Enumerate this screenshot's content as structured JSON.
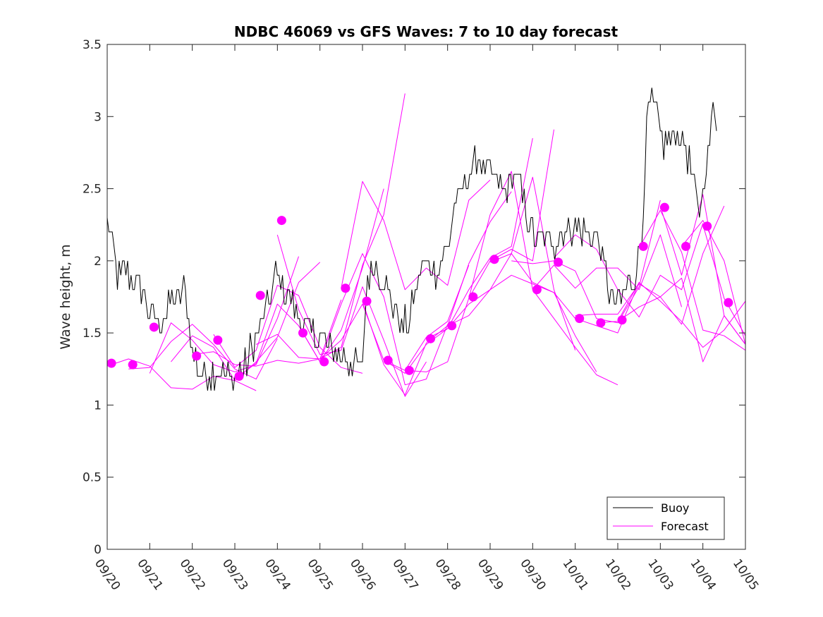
{
  "chart_data": {
    "type": "line",
    "title": "NDBC 46069 vs GFS Waves: 7 to 10 day forecast",
    "xlabel": "",
    "ylabel": "Wave height, m",
    "xlim": [
      0,
      15
    ],
    "ylim": [
      0,
      3.5
    ],
    "yticks": [
      0,
      0.5,
      1,
      1.5,
      2,
      2.5,
      3,
      3.5
    ],
    "ytick_labels": [
      "0",
      "0.5",
      "1",
      "1.5",
      "2",
      "2.5",
      "3",
      "3.5"
    ],
    "xticks": [
      0,
      1,
      2,
      3,
      4,
      5,
      6,
      7,
      8,
      9,
      10,
      11,
      12,
      13,
      14,
      15
    ],
    "xtick_labels": [
      "09/20",
      "09/21",
      "09/22",
      "09/23",
      "09/24",
      "09/25",
      "09/26",
      "09/27",
      "09/28",
      "09/29",
      "09/30",
      "10/01",
      "10/02",
      "10/03",
      "10/04",
      "10/05"
    ],
    "x_units": "days since 09/20 00:00",
    "grid": false,
    "legend": {
      "position": "bottom-right",
      "entries": [
        {
          "label": "Buoy",
          "color": "#000000"
        },
        {
          "label": "Forecast",
          "color": "#ff00ff"
        }
      ]
    },
    "colors": {
      "buoy": "#000000",
      "forecast": "#ff00ff"
    },
    "buoy_knots": [
      [
        0.0,
        2.3
      ],
      [
        0.15,
        2.1
      ],
      [
        0.25,
        1.9
      ],
      [
        0.5,
        1.9
      ],
      [
        0.75,
        1.85
      ],
      [
        1.0,
        1.6
      ],
      [
        1.25,
        1.55
      ],
      [
        1.5,
        1.7
      ],
      [
        1.8,
        1.8
      ],
      [
        2.0,
        1.4
      ],
      [
        2.2,
        1.2
      ],
      [
        2.6,
        1.25
      ],
      [
        2.9,
        1.2
      ],
      [
        3.2,
        1.25
      ],
      [
        3.6,
        1.55
      ],
      [
        3.85,
        1.8
      ],
      [
        4.0,
        1.9
      ],
      [
        4.2,
        1.8
      ],
      [
        4.4,
        1.65
      ],
      [
        4.7,
        1.5
      ],
      [
        5.0,
        1.45
      ],
      [
        5.4,
        1.35
      ],
      [
        5.7,
        1.3
      ],
      [
        6.0,
        1.25
      ],
      [
        6.1,
        1.85
      ],
      [
        6.3,
        2.0
      ],
      [
        6.6,
        1.8
      ],
      [
        6.9,
        1.55
      ],
      [
        7.1,
        1.6
      ],
      [
        7.4,
        1.95
      ],
      [
        7.8,
        1.95
      ],
      [
        8.0,
        2.05
      ],
      [
        8.15,
        2.4
      ],
      [
        8.4,
        2.5
      ],
      [
        8.7,
        2.7
      ],
      [
        9.0,
        2.6
      ],
      [
        9.3,
        2.5
      ],
      [
        9.6,
        2.6
      ],
      [
        9.9,
        2.3
      ],
      [
        10.1,
        2.15
      ],
      [
        10.4,
        2.1
      ],
      [
        10.7,
        2.2
      ],
      [
        11.0,
        2.25
      ],
      [
        11.3,
        2.2
      ],
      [
        11.6,
        2.1
      ],
      [
        11.8,
        1.75
      ],
      [
        12.0,
        1.7
      ],
      [
        12.2,
        1.8
      ],
      [
        12.4,
        1.9
      ],
      [
        12.55,
        2.1
      ],
      [
        12.65,
        2.8
      ],
      [
        12.75,
        3.1
      ],
      [
        12.9,
        3.0
      ],
      [
        13.1,
        2.8
      ],
      [
        13.4,
        2.9
      ],
      [
        13.7,
        2.7
      ],
      [
        13.9,
        2.3
      ],
      [
        14.1,
        2.7
      ],
      [
        14.25,
        3.1
      ],
      [
        14.35,
        2.9
      ]
    ],
    "buoy_step_days": 0.04,
    "buoy_jitter_m": 0.11,
    "forecast_series": [
      {
        "name": "run 1",
        "x": [
          0.0,
          0.5,
          1.0,
          1.5,
          2.0,
          2.5,
          3.0,
          3.5
        ],
        "y": [
          1.27,
          1.32,
          1.27,
          1.12,
          1.11,
          1.2,
          1.17,
          1.1
        ]
      },
      {
        "name": "run 2",
        "x": [
          0.5,
          1.0,
          1.5,
          2.0,
          2.5,
          3.0,
          3.5,
          4.0
        ],
        "y": [
          1.25,
          1.26,
          1.44,
          1.56,
          1.42,
          1.25,
          1.18,
          1.46
        ]
      },
      {
        "name": "run 3",
        "x": [
          1.0,
          1.5,
          2.0,
          2.5,
          3.0,
          3.5,
          4.0,
          4.5
        ],
        "y": [
          1.22,
          1.57,
          1.45,
          1.28,
          1.23,
          1.28,
          1.6,
          2.03
        ]
      },
      {
        "name": "run 4",
        "x": [
          1.5,
          2.0,
          2.5,
          3.0,
          3.5,
          4.0,
          4.5,
          5.0
        ],
        "y": [
          1.3,
          1.48,
          1.4,
          1.17,
          1.3,
          1.47,
          1.85,
          1.99
        ]
      },
      {
        "name": "run 5",
        "x": [
          2.0,
          2.5,
          3.0,
          3.5,
          4.0,
          4.5,
          5.0,
          5.5
        ],
        "y": [
          1.35,
          1.37,
          1.28,
          1.27,
          1.31,
          1.29,
          1.32,
          1.73
        ]
      },
      {
        "name": "run 6",
        "x": [
          2.5,
          3.0,
          3.5,
          4.0,
          4.5,
          5.0,
          5.5,
          6.0
        ],
        "y": [
          1.49,
          1.26,
          1.38,
          1.83,
          1.76,
          1.4,
          1.26,
          1.22
        ]
      },
      {
        "name": "run 7",
        "x": [
          3.0,
          3.5,
          4.0,
          4.5,
          5.0,
          5.5,
          6.0,
          6.5
        ],
        "y": [
          1.18,
          1.29,
          1.7,
          1.55,
          1.3,
          1.52,
          1.95,
          2.5
        ]
      },
      {
        "name": "run 8",
        "x": [
          3.5,
          4.0,
          4.5,
          5.0,
          5.5,
          6.0,
          6.5,
          7.0
        ],
        "y": [
          1.42,
          1.49,
          1.33,
          1.32,
          1.4,
          1.97,
          2.32,
          3.16
        ]
      },
      {
        "name": "run 9",
        "x": [
          4.0,
          4.5,
          5.0,
          5.5,
          6.0,
          6.5,
          7.0,
          7.5
        ],
        "y": [
          2.18,
          1.66,
          1.35,
          1.38,
          1.82,
          1.45,
          1.06,
          1.3
        ]
      },
      {
        "name": "run 10",
        "x": [
          4.5,
          5.0,
          5.5,
          6.0,
          6.5,
          7.0,
          7.5,
          8.0
        ],
        "y": [
          1.55,
          1.3,
          1.7,
          2.05,
          1.75,
          1.14,
          1.18,
          1.56
        ]
      },
      {
        "name": "run 11",
        "x": [
          5.0,
          5.5,
          6.0,
          6.5,
          7.0,
          7.5,
          8.0,
          8.5
        ],
        "y": [
          1.32,
          1.45,
          1.7,
          1.31,
          1.24,
          1.47,
          1.58,
          1.97
        ]
      },
      {
        "name": "run 12",
        "x": [
          5.5,
          6.0,
          6.5,
          7.0,
          7.5,
          8.0,
          8.5,
          9.0
        ],
        "y": [
          1.81,
          2.55,
          2.28,
          1.8,
          1.95,
          1.83,
          2.42,
          2.56
        ]
      },
      {
        "name": "run 13",
        "x": [
          6.0,
          6.5,
          7.0,
          7.5,
          8.0,
          8.5,
          9.0,
          9.5
        ],
        "y": [
          1.72,
          1.28,
          1.07,
          1.43,
          1.55,
          1.98,
          2.27,
          2.48
        ]
      },
      {
        "name": "run 14",
        "x": [
          6.5,
          7.0,
          7.5,
          8.0,
          8.5,
          9.0,
          9.5,
          10.0
        ],
        "y": [
          1.31,
          1.22,
          1.42,
          1.53,
          1.8,
          2.02,
          2.1,
          2.85
        ]
      },
      {
        "name": "run 15",
        "x": [
          7.0,
          7.5,
          8.0,
          8.5,
          9.0,
          9.5,
          10.0,
          10.5
        ],
        "y": [
          1.24,
          1.23,
          1.3,
          1.74,
          2.0,
          2.08,
          2.0,
          2.91
        ]
      },
      {
        "name": "run 16",
        "x": [
          7.5,
          8.0,
          8.5,
          9.0,
          9.5,
          10.0,
          10.5,
          11.0
        ],
        "y": [
          1.46,
          1.53,
          1.7,
          1.8,
          2.05,
          2.58,
          1.8,
          1.38
        ]
      },
      {
        "name": "run 17",
        "x": [
          8.0,
          8.5,
          9.0,
          9.5,
          10.0,
          10.5,
          11.0,
          11.5
        ],
        "y": [
          1.55,
          1.62,
          1.8,
          1.9,
          1.84,
          1.78,
          1.48,
          1.23
        ]
      },
      {
        "name": "run 18",
        "x": [
          8.5,
          9.0,
          9.5,
          10.0,
          10.5,
          11.0,
          11.5,
          12.0
        ],
        "y": [
          1.74,
          2.32,
          2.62,
          1.8,
          1.6,
          1.4,
          1.21,
          1.14
        ]
      },
      {
        "name": "run 19",
        "x": [
          9.0,
          9.5,
          10.0,
          10.5,
          11.0,
          11.5,
          12.0,
          12.5
        ],
        "y": [
          1.99,
          2.05,
          1.85,
          1.78,
          1.6,
          1.55,
          1.5,
          1.85
        ]
      },
      {
        "name": "run 20",
        "x": [
          9.5,
          10.0,
          10.5,
          11.0,
          11.5,
          12.0,
          12.5,
          13.0
        ],
        "y": [
          2.0,
          1.98,
          2.0,
          1.93,
          1.6,
          1.57,
          1.82,
          2.42
        ]
      },
      {
        "name": "run 21",
        "x": [
          10.0,
          10.5,
          11.0,
          11.5,
          12.0,
          12.5,
          13.0,
          13.5
        ],
        "y": [
          1.8,
          1.97,
          1.81,
          1.95,
          1.95,
          1.8,
          2.18,
          1.68
        ]
      },
      {
        "name": "run 22",
        "x": [
          10.5,
          11.0,
          11.5,
          12.0,
          12.5,
          13.0,
          13.5,
          14.0
        ],
        "y": [
          2.02,
          2.18,
          2.08,
          1.8,
          1.61,
          1.9,
          1.8,
          2.26
        ]
      },
      {
        "name": "run 23",
        "x": [
          11.0,
          11.5,
          12.0,
          12.5,
          13.0,
          13.5,
          14.0,
          14.5
        ],
        "y": [
          1.62,
          1.63,
          1.63,
          1.84,
          1.75,
          1.56,
          2.05,
          2.38
        ]
      },
      {
        "name": "run 24",
        "x": [
          11.5,
          12.0,
          12.5,
          13.0,
          13.5,
          14.0,
          14.5,
          15.0
        ],
        "y": [
          1.57,
          1.58,
          1.85,
          1.72,
          1.58,
          1.4,
          1.52,
          1.72
        ]
      },
      {
        "name": "run 25",
        "x": [
          12.0,
          12.5,
          13.0,
          13.5,
          14.0,
          14.5,
          15.0
        ],
        "y": [
          1.58,
          1.68,
          1.75,
          1.88,
          1.3,
          1.62,
          1.42
        ]
      },
      {
        "name": "run 26",
        "x": [
          12.5,
          13.0,
          13.5,
          14.0,
          14.5,
          15.0
        ],
        "y": [
          2.09,
          2.35,
          2.06,
          1.52,
          1.48,
          1.38
        ]
      },
      {
        "name": "run 27",
        "x": [
          13.0,
          13.5,
          14.0,
          14.5,
          15.0
        ],
        "y": [
          2.38,
          1.9,
          2.46,
          1.62,
          1.42
        ]
      },
      {
        "name": "run 28",
        "x": [
          13.5,
          14.0,
          14.5,
          15.0
        ],
        "y": [
          2.1,
          2.28,
          2.0,
          1.42
        ]
      },
      {
        "name": "run 29",
        "x": [
          14.0,
          14.5,
          15.0
        ],
        "y": [
          2.25,
          1.74,
          1.48
        ]
      }
    ],
    "forecast_markers": {
      "x": [
        0.1,
        0.6,
        1.1,
        2.1,
        2.6,
        3.1,
        3.6,
        4.1,
        4.6,
        5.1,
        5.6,
        6.1,
        6.6,
        7.1,
        7.6,
        8.1,
        8.6,
        9.1,
        10.1,
        10.6,
        11.1,
        11.6,
        12.1,
        12.6,
        13.1,
        13.6,
        14.1,
        14.6
      ],
      "y": [
        1.29,
        1.28,
        1.54,
        1.34,
        1.45,
        1.2,
        1.76,
        2.28,
        1.5,
        1.3,
        1.81,
        1.72,
        1.31,
        1.24,
        1.46,
        1.55,
        1.75,
        2.01,
        1.8,
        1.99,
        1.6,
        1.57,
        1.59,
        2.1,
        2.37,
        2.1,
        2.24,
        1.71
      ]
    }
  }
}
